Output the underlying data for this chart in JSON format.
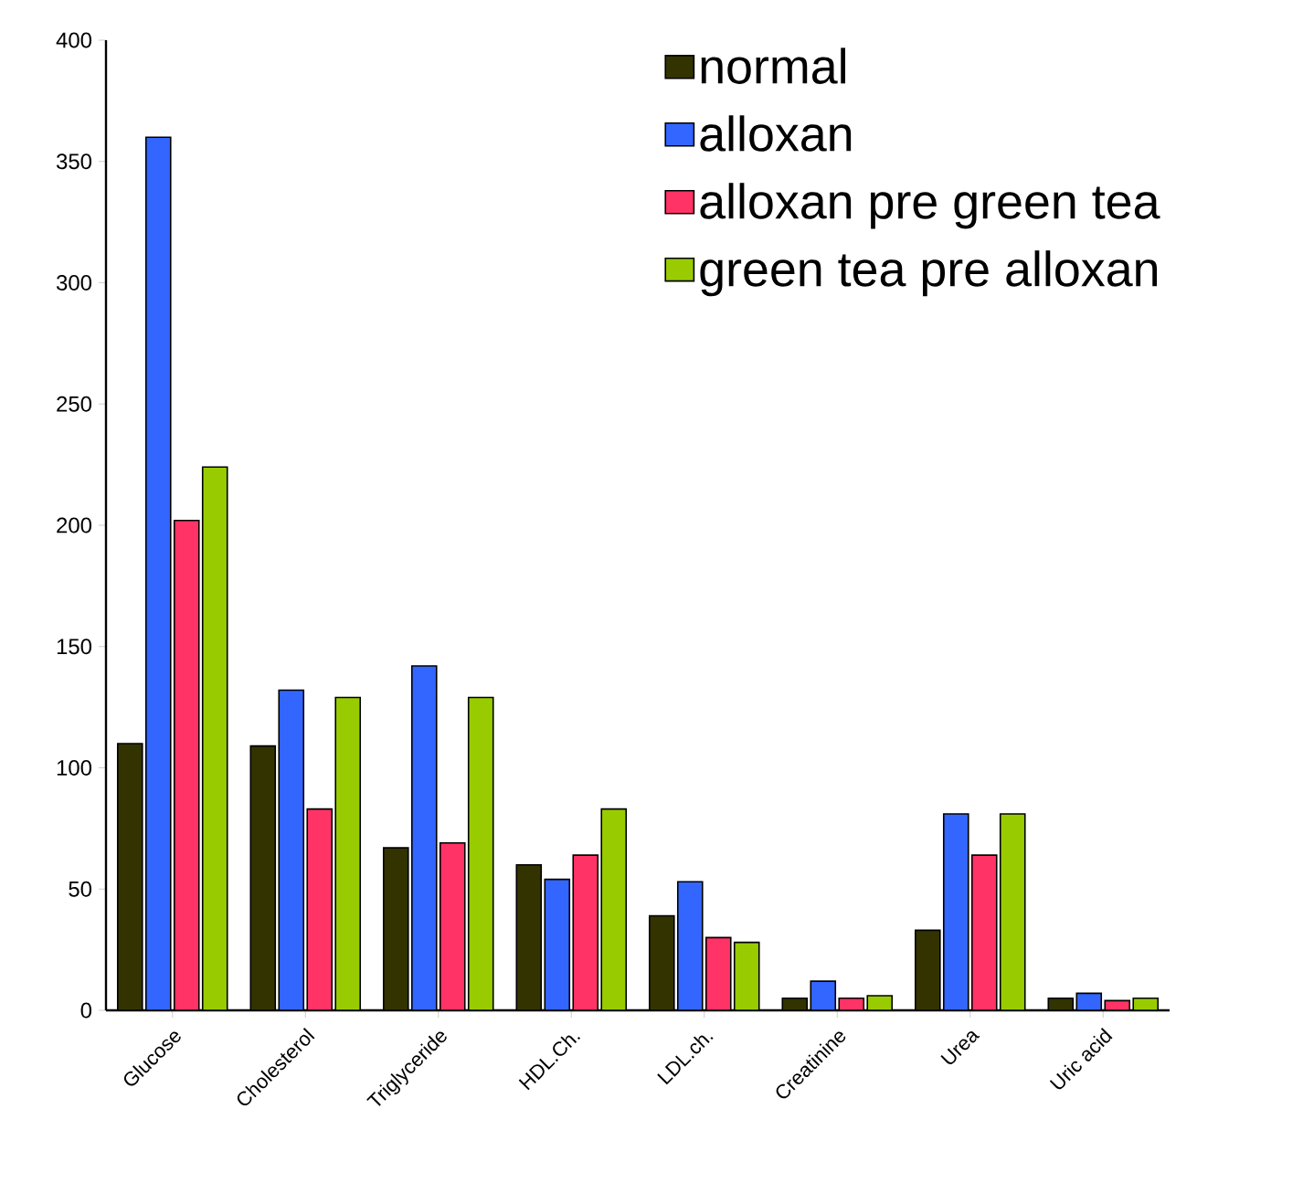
{
  "chart_data": {
    "type": "bar",
    "categories": [
      "Glucose",
      "Cholesterol",
      "Triglyceride",
      "HDL.Ch.",
      "LDL.ch.",
      "Creatinine",
      "Urea",
      "Uric acid"
    ],
    "series": [
      {
        "name": "normal",
        "color": "#333300",
        "values": [
          110,
          109,
          67,
          60,
          39,
          5,
          33,
          5
        ]
      },
      {
        "name": "alloxan",
        "color": "#3366ff",
        "values": [
          360,
          132,
          142,
          54,
          53,
          12,
          81,
          7
        ]
      },
      {
        "name": "alloxan pre green tea",
        "color": "#ff3366",
        "values": [
          202,
          83,
          69,
          64,
          30,
          5,
          64,
          4
        ]
      },
      {
        "name": "green tea pre alloxan",
        "color": "#99cc00",
        "values": [
          224,
          129,
          129,
          83,
          28,
          6,
          81,
          5
        ]
      }
    ],
    "ylim": [
      0,
      400
    ],
    "yticks": [
      0,
      50,
      100,
      150,
      200,
      250,
      300,
      350,
      400
    ],
    "grid": false,
    "legend": "top right"
  }
}
